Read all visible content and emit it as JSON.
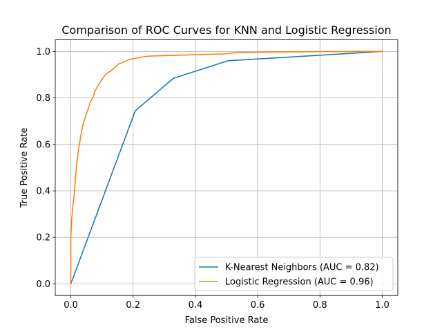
{
  "chart_data": {
    "type": "line",
    "title": "Comparison of ROC Curves for KNN and Logistic Regression",
    "xlabel": "False Positive Rate",
    "ylabel": "True Positive Rate",
    "xlim": [
      -0.05,
      1.05
    ],
    "ylim": [
      -0.05,
      1.05
    ],
    "xticks": [
      "0.0",
      "0.2",
      "0.4",
      "0.6",
      "0.8",
      "1.0"
    ],
    "yticks": [
      "0.0",
      "0.2",
      "0.4",
      "0.6",
      "0.8",
      "1.0"
    ],
    "grid": true,
    "legend_position": "lower-right",
    "series": [
      {
        "name": "K-Nearest Neighbors (AUC = 0.82)",
        "color": "#1f77b4",
        "x": [
          0.0,
          0.207,
          0.33,
          0.505,
          1.0
        ],
        "y": [
          0.0,
          0.745,
          0.885,
          0.96,
          1.0
        ]
      },
      {
        "name": "Logistic Regression (AUC = 0.96)",
        "color": "#ff7f0e",
        "x": [
          0.0,
          0.0,
          0.003,
          0.006,
          0.01,
          0.013,
          0.016,
          0.02,
          0.025,
          0.03,
          0.035,
          0.04,
          0.047,
          0.055,
          0.062,
          0.07,
          0.078,
          0.086,
          0.095,
          0.105,
          0.115,
          0.128,
          0.14,
          0.152,
          0.17,
          0.19,
          0.205,
          0.225,
          0.25,
          0.3,
          0.35,
          0.4,
          0.45,
          0.5,
          0.53,
          0.6,
          0.7,
          0.8,
          0.9,
          1.0
        ],
        "y": [
          0.0,
          0.2,
          0.28,
          0.33,
          0.37,
          0.42,
          0.47,
          0.53,
          0.58,
          0.62,
          0.66,
          0.69,
          0.72,
          0.75,
          0.78,
          0.8,
          0.83,
          0.85,
          0.87,
          0.89,
          0.905,
          0.915,
          0.93,
          0.945,
          0.955,
          0.966,
          0.97,
          0.975,
          0.98,
          0.982,
          0.984,
          0.986,
          0.988,
          0.99,
          0.995,
          0.997,
          0.998,
          0.999,
          1.0,
          1.0
        ]
      }
    ]
  }
}
